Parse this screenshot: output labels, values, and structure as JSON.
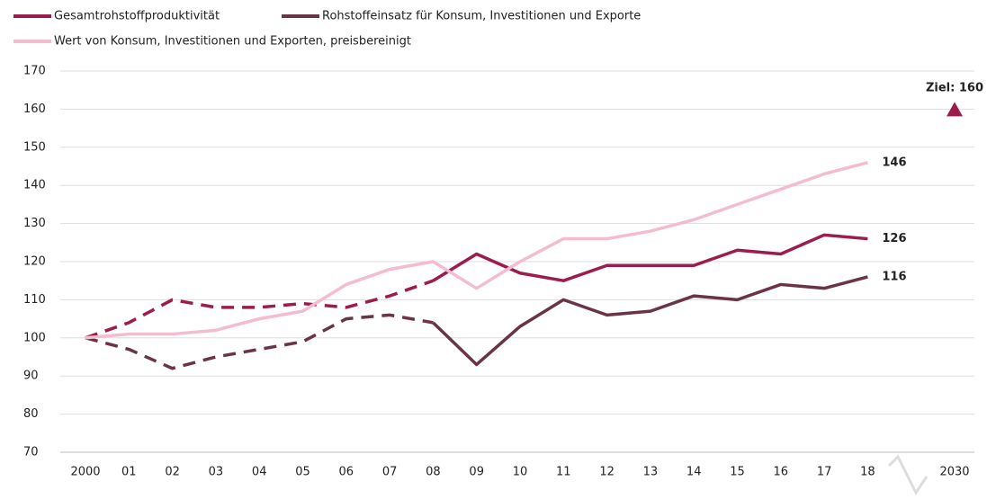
{
  "chart_data": {
    "type": "line",
    "categories": [
      "2000",
      "01",
      "02",
      "03",
      "04",
      "05",
      "06",
      "07",
      "08",
      "09",
      "10",
      "11",
      "12",
      "13",
      "14",
      "15",
      "16",
      "17",
      "18",
      null,
      "2030"
    ],
    "series": [
      {
        "name": "Gesamtrohstoffproduktivität",
        "color": "#9c1c4e",
        "dash_until": 8,
        "values": [
          100,
          104,
          110,
          108,
          108,
          109,
          108,
          111,
          115,
          122,
          117,
          115,
          119,
          119,
          119,
          123,
          122,
          127,
          126,
          null,
          null
        ]
      },
      {
        "name": "Rohstoffeinsatz für Konsum, Investitionen und Exporte",
        "color": "#6b3346",
        "dash_until": 8,
        "values": [
          100,
          97,
          92,
          95,
          97,
          99,
          105,
          106,
          104,
          93,
          103,
          110,
          106,
          107,
          111,
          110,
          114,
          113,
          116,
          null,
          null
        ]
      },
      {
        "name": "Wert von Konsum, Investitionen und Exporten, preisbereinigt",
        "color": "#f4bccf",
        "dash_until": 0,
        "values": [
          100,
          101,
          101,
          102,
          105,
          107,
          114,
          118,
          120,
          113,
          120,
          126,
          126,
          128,
          131,
          135,
          139,
          143,
          146,
          null,
          null
        ]
      }
    ],
    "target": {
      "label": "Ziel: 160",
      "value": 160,
      "color": "#9c1c4e"
    },
    "ylim": [
      70,
      170
    ],
    "yticks": [
      70,
      80,
      90,
      100,
      110,
      120,
      130,
      140,
      150,
      160,
      170
    ],
    "grid": true
  }
}
